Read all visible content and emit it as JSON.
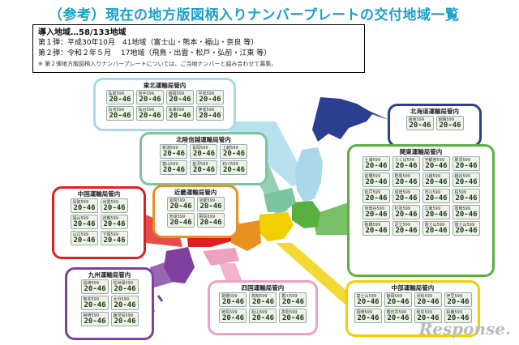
{
  "title": "（参考）現在の地方版図柄入りナンバープレートの交付地域一覧",
  "info": {
    "head": "導入地域…58/133地域",
    "line1": "第１弾：平成30年10月　41地域（富士山・熊本・福山・奈良 等）",
    "line2": "第２弾：令和２年５月　 17地域（飛鳥・出雲・松戸・弘前・江東 等）",
    "note": "※ 第２弾地方版図柄入りナンバープレートについては、ご当地ナンバーと組み合わせて募集。"
  },
  "plate_number": "20-46",
  "colors": {
    "tohoku": "#a8d8ea",
    "hokkaido": "#2a3f8f",
    "hokuriku": "#7cc4a0",
    "kanto": "#58b040",
    "chubu": "#f0d000",
    "kinki": "#e89020",
    "chugoku": "#e02020",
    "shikoku": "#f0a0c0",
    "kyushu": "#8040a0"
  },
  "regions": {
    "tohoku": {
      "label": "東北運輸局管内",
      "plates": [
        "弘前599",
        "岩手599",
        "盛岡599",
        "平泉599",
        "白河599",
        "仙台599",
        "会津599",
        "伊達599"
      ]
    },
    "hokkaido": {
      "label": "北海道運輸局管内",
      "plates": [
        "函館599",
        "釧路599"
      ]
    },
    "hokuriku": {
      "label": "北陸信越運輸局管内",
      "plates": [
        "新潟599",
        "長岡599",
        "上越599",
        "富山599",
        "金沢599",
        "石川599"
      ]
    },
    "kanto": {
      "label": "関東運輸局管内",
      "plates": [
        "土浦599",
        "つくば599",
        "宇都宮599",
        "那須599",
        "前橋599",
        "群馬599",
        "川越599",
        "越谷599",
        "松戸599",
        "成田599",
        "市川599",
        "柏599",
        "世田谷599",
        "杉並599",
        "江東599",
        "葛飾599",
        "板橋599",
        "足立599",
        "富士山599",
        "富士山599"
      ]
    },
    "chubu": {
      "label": "中部運輸局管内",
      "plates": [
        "富士山599",
        "静岡599",
        "浜松599",
        "伊豆599",
        "岡崎599",
        "春日井599",
        "岐阜599",
        "鈴鹿599"
      ]
    },
    "kinki": {
      "label": "近畿運輸局管内",
      "plates": [
        "滋賀599",
        "京都599",
        "奈良599",
        "飛鳥599"
      ]
    },
    "chugoku": {
      "label": "中国運輸局管内",
      "plates": [
        "鳥取599",
        "出雲599",
        "福山599",
        "倉敷599",
        "山口599",
        "下関599"
      ]
    },
    "shikoku": {
      "label": "四国運輸局管内",
      "plates": [
        "愛媛599",
        "高知599",
        "香川599",
        "徳島599",
        "松山599",
        "高松599"
      ]
    },
    "kyushu": {
      "label": "九州運輸局管内",
      "plates": [
        "長崎599",
        "佐世保599",
        "熊本599",
        "大分599",
        "宮崎599",
        "鹿児島599"
      ]
    }
  },
  "logo": "Response."
}
